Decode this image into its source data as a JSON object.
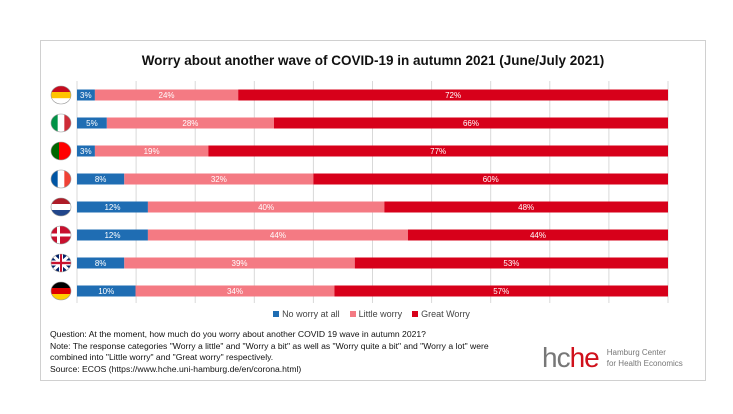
{
  "chart_data": {
    "type": "bar",
    "stacked": true,
    "orientation": "horizontal",
    "title": "Worry about another wave of COVID-19 in autumn 2021 (June/July 2021)",
    "categories": [
      "Spain",
      "Italy",
      "Portugal",
      "France",
      "Netherlands",
      "Denmark",
      "United Kingdom",
      "Germany"
    ],
    "series": [
      {
        "name": "No worry at all",
        "color": "#1f6db3",
        "values": [
          3,
          5,
          3,
          8,
          12,
          12,
          8,
          10
        ]
      },
      {
        "name": "Little worry",
        "color": "#f47a83",
        "values": [
          24,
          28,
          19,
          32,
          40,
          44,
          39,
          34
        ]
      },
      {
        "name": "Great Worry",
        "color": "#d7001a",
        "values": [
          72,
          66,
          77,
          60,
          48,
          44,
          53,
          57
        ]
      }
    ],
    "xlim": [
      0,
      100
    ],
    "grid": true,
    "legend": "bottom"
  },
  "notes": [
    "Question: At the moment, how much do you worry about another COVID 19 wave in autumn 2021?",
    "Note: The response categories \"Worry a little\" and \"Worry a bit\" as well as \"Worry quite a bit\" and \"Worry a lot\" were",
    "combined into \"Little worry\" and \"Great worry\" respectively.",
    "Source: ECOS (https://www.hche.uni-hamburg.de/en/corona.html)"
  ],
  "logo": {
    "hc": "hc",
    "he": "he",
    "line1": "Hamburg Center",
    "line2": "for Health Economics"
  }
}
